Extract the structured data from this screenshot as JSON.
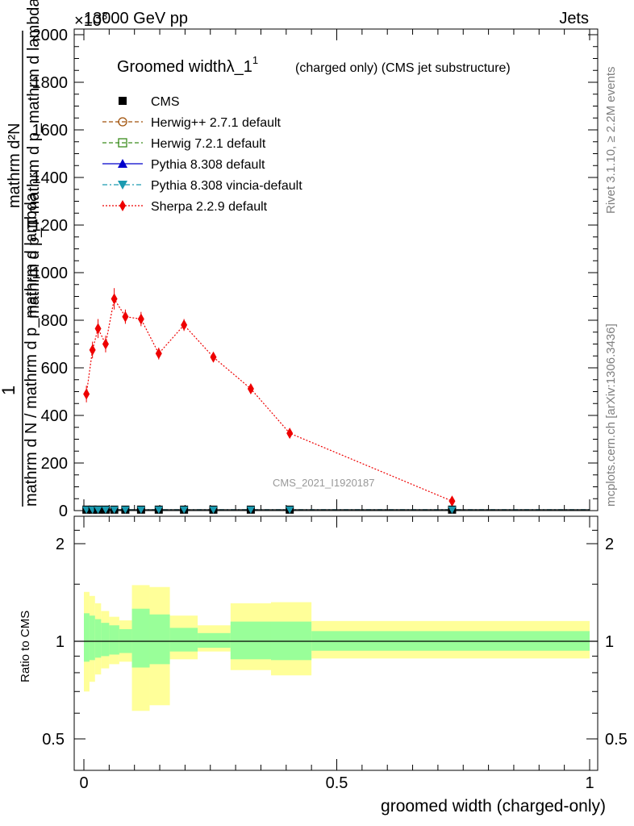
{
  "header": {
    "left": "13000 GeV pp",
    "right": "Jets",
    "exponent": "×10",
    "exponent_power": "3"
  },
  "side_text": {
    "rivet": "Rivet 3.1.10, ≥ 2.2M events",
    "mcplots": "mcplots.cern.ch [arXiv:1306.3436]"
  },
  "watermark": "CMS_2021_I1920187",
  "chart_data": [
    {
      "type": "line",
      "title": "Groomed widthλ_1",
      "title_superscript": "1",
      "title_suffix": "(charged only) (CMS jet substructure)",
      "ylabel_parts": [
        "1",
        "mathrm d N / mathrm d p_mathrm d lambda",
        "mathrm d²N",
        "mathrm d p_T mathrm d p_mathrm d lambda",
        "T"
      ],
      "xlim": [
        0,
        1
      ],
      "ylim": [
        0,
        2000
      ],
      "y_ticks": [
        "0",
        "200",
        "400",
        "600",
        "800",
        "1000",
        "1200",
        "1400",
        "1600",
        "1800",
        "2000"
      ],
      "y_tick_values": [
        0,
        200,
        400,
        600,
        800,
        1000,
        1200,
        1400,
        1600,
        1800,
        2000
      ],
      "legend_position": "top-left",
      "legend": [
        {
          "label": "CMS",
          "color": "#000000",
          "marker": "square",
          "line": "none"
        },
        {
          "label": "Herwig++ 2.7.1 default",
          "color": "#a0520a",
          "marker": "circle-open",
          "line": "dashed"
        },
        {
          "label": "Herwig 7.2.1 default",
          "color": "#3a8c1c",
          "marker": "square-open",
          "line": "dashed"
        },
        {
          "label": "Pythia 8.308 default",
          "color": "#0000cc",
          "marker": "triangle",
          "line": "solid"
        },
        {
          "label": "Pythia 8.308 vincia-default",
          "color": "#1a9ab0",
          "marker": "triangle-down",
          "line": "dashdot"
        },
        {
          "label": "Sherpa 2.2.9 default",
          "color": "#ee0000",
          "marker": "diamond",
          "line": "dotted"
        }
      ],
      "series": [
        {
          "name": "Sherpa 2.2.9 default",
          "color": "#ee0000",
          "x": [
            0.005,
            0.017,
            0.028,
            0.043,
            0.06,
            0.082,
            0.113,
            0.148,
            0.198,
            0.256,
            0.33,
            0.407,
            0.728
          ],
          "values": [
            490,
            675,
            765,
            700,
            890,
            815,
            805,
            660,
            780,
            645,
            512,
            325,
            40
          ],
          "errors": [
            35,
            35,
            40,
            35,
            45,
            30,
            30,
            25,
            25,
            20,
            15,
            10,
            5
          ]
        },
        {
          "name": "CMS",
          "color": "#000000",
          "x": [
            0.005,
            0.017,
            0.028,
            0.043,
            0.06,
            0.082,
            0.113,
            0.148,
            0.198,
            0.256,
            0.33,
            0.407,
            0.728
          ],
          "values": [
            4,
            4,
            4,
            4,
            4,
            4,
            4,
            4,
            4,
            4,
            4,
            4,
            4
          ]
        },
        {
          "name": "Pythia 8.308 vincia-default",
          "color": "#1a9ab0",
          "x": [
            0.005,
            0.017,
            0.028,
            0.043,
            0.06,
            0.082,
            0.113,
            0.148,
            0.198,
            0.256,
            0.33,
            0.407,
            0.728
          ],
          "values": [
            4,
            4,
            4,
            4,
            4,
            4,
            4,
            4,
            4,
            4,
            4,
            4,
            4
          ]
        }
      ]
    },
    {
      "type": "area",
      "ylabel": "Ratio to CMS",
      "xlabel": "groomed width (charged-only)",
      "xlim": [
        0,
        1
      ],
      "ylim": [
        0.4,
        2.3
      ],
      "y_scale": "log",
      "y_ticks": [
        "0.5",
        "1",
        "2"
      ],
      "y_tick_values": [
        0.5,
        1,
        2
      ],
      "x_ticks": [
        "0",
        "0.5",
        "1"
      ],
      "x_tick_values": [
        0,
        0.5,
        1
      ],
      "bins": [
        {
          "x0": 0.0,
          "x1": 0.011,
          "stat_lo": 0.865,
          "stat_hi": 1.22,
          "tot_lo": 0.7,
          "tot_hi": 1.42
        },
        {
          "x0": 0.011,
          "x1": 0.022,
          "stat_lo": 0.875,
          "stat_hi": 1.2,
          "tot_lo": 0.75,
          "tot_hi": 1.38
        },
        {
          "x0": 0.022,
          "x1": 0.034,
          "stat_lo": 0.89,
          "stat_hi": 1.17,
          "tot_lo": 0.79,
          "tot_hi": 1.31
        },
        {
          "x0": 0.034,
          "x1": 0.05,
          "stat_lo": 0.9,
          "stat_hi": 1.14,
          "tot_lo": 0.825,
          "tot_hi": 1.24
        },
        {
          "x0": 0.05,
          "x1": 0.07,
          "stat_lo": 0.91,
          "stat_hi": 1.12,
          "tot_lo": 0.85,
          "tot_hi": 1.19
        },
        {
          "x0": 0.07,
          "x1": 0.095,
          "stat_lo": 0.92,
          "stat_hi": 1.09,
          "tot_lo": 0.865,
          "tot_hi": 1.16
        },
        {
          "x0": 0.095,
          "x1": 0.13,
          "stat_lo": 0.83,
          "stat_hi": 1.26,
          "tot_lo": 0.61,
          "tot_hi": 1.49
        },
        {
          "x0": 0.13,
          "x1": 0.17,
          "stat_lo": 0.85,
          "stat_hi": 1.21,
          "tot_lo": 0.635,
          "tot_hi": 1.47
        },
        {
          "x0": 0.17,
          "x1": 0.225,
          "stat_lo": 0.93,
          "stat_hi": 1.1,
          "tot_lo": 0.88,
          "tot_hi": 1.2
        },
        {
          "x0": 0.225,
          "x1": 0.29,
          "stat_lo": 0.955,
          "stat_hi": 1.06,
          "tot_lo": 0.93,
          "tot_hi": 1.12
        },
        {
          "x0": 0.29,
          "x1": 0.37,
          "stat_lo": 0.88,
          "stat_hi": 1.15,
          "tot_lo": 0.815,
          "tot_hi": 1.31
        },
        {
          "x0": 0.37,
          "x1": 0.45,
          "stat_lo": 0.875,
          "stat_hi": 1.15,
          "tot_lo": 0.785,
          "tot_hi": 1.32
        },
        {
          "x0": 0.45,
          "x1": 1.0,
          "stat_lo": 0.935,
          "stat_hi": 1.075,
          "tot_lo": 0.885,
          "tot_hi": 1.155
        }
      ],
      "stat_color": "#99ff99",
      "tot_color": "#ffff99",
      "reference": 1
    }
  ]
}
